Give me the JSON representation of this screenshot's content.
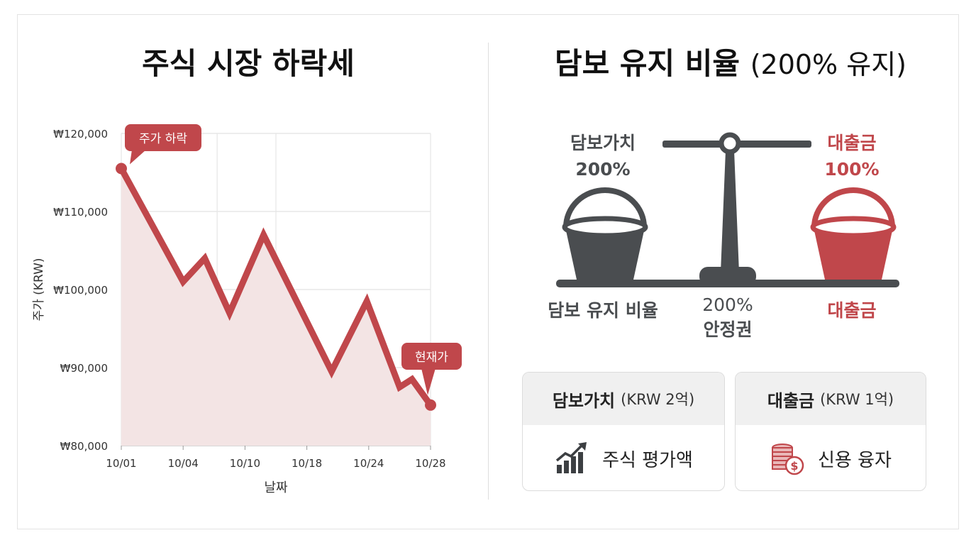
{
  "left_panel": {
    "title": "주식 시장 하락세"
  },
  "right_panel": {
    "title": "담보 유지 비율",
    "title_sub": "(200% 유지)",
    "collateral_label": "담보가치",
    "collateral_pct": "200%",
    "loan_label": "대출금",
    "loan_pct": "100%",
    "bottom_left_label": "담보 유지 비율",
    "center_pct": "200%",
    "center_label": "안정권",
    "bottom_right_label": "대출금",
    "card_collateral": {
      "title": "담보가치",
      "unit": "(KRW 2억)",
      "body": "주식 평가액",
      "icon": "bar-chart-trend-icon"
    },
    "card_loan": {
      "title": "대출금",
      "unit": "(KRW 1억)",
      "body": "신용 융자",
      "icon": "coin-stack-icon"
    }
  },
  "colors": {
    "accent_red": "#c0474b",
    "dark_gray": "#4a4d50",
    "area_fill": "#f3e4e4"
  },
  "chart_data": {
    "type": "line",
    "title": "",
    "xlabel": "날짜",
    "ylabel": "주가 (KRW)",
    "x_tick_labels": [
      "10/01",
      "10/04",
      "10/10",
      "10/18",
      "10/24",
      "10/28"
    ],
    "y_tick_labels": [
      "₩80,000",
      "₩90,000",
      "₩100,000",
      "₩110,000",
      "₩120,000"
    ],
    "ylim": [
      80000,
      120000
    ],
    "grid": true,
    "area_fill": true,
    "series": [
      {
        "values": [
          {
            "x": 0.0,
            "y": 115500
          },
          {
            "x": 1.0,
            "y": 101000
          },
          {
            "x": 1.35,
            "y": 104000
          },
          {
            "x": 1.75,
            "y": 97000
          },
          {
            "x": 2.3,
            "y": 107000
          },
          {
            "x": 3.4,
            "y": 89500
          },
          {
            "x": 3.97,
            "y": 98500
          },
          {
            "x": 4.5,
            "y": 87500
          },
          {
            "x": 4.7,
            "y": 88500
          },
          {
            "x": 5.0,
            "y": 85200
          }
        ]
      }
    ],
    "annotations": [
      {
        "text": "주가 하락",
        "at_point": 0
      },
      {
        "text": "현재가",
        "at_point": 9
      }
    ]
  }
}
